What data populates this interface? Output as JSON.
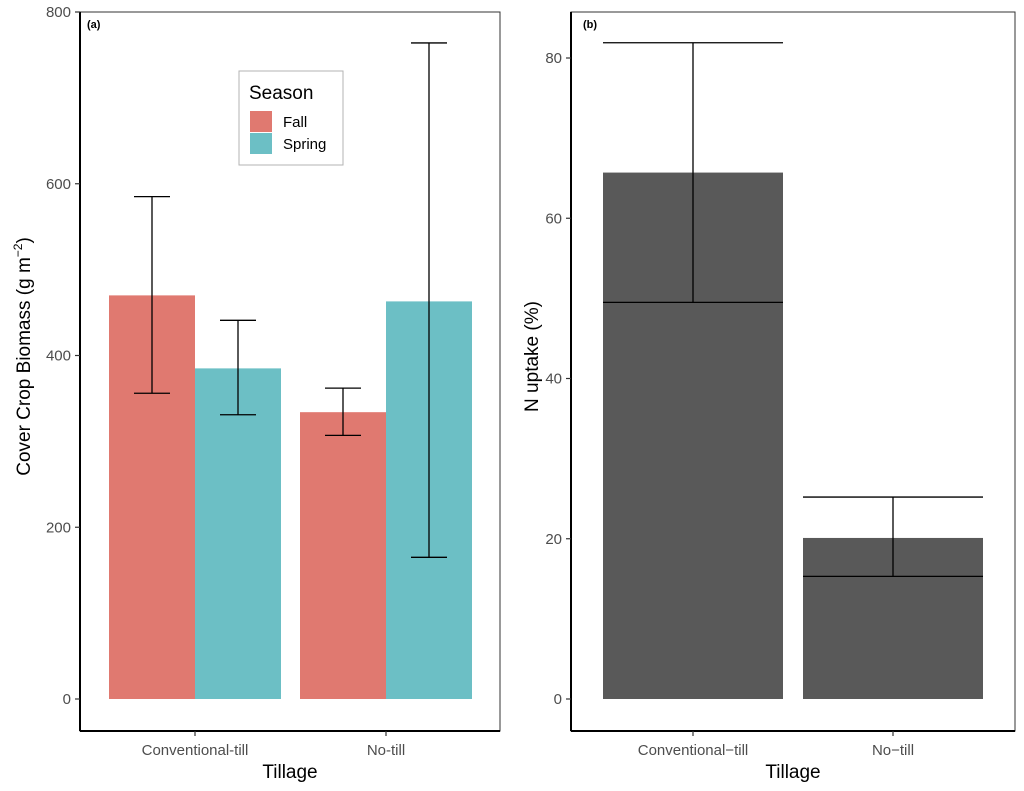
{
  "chart_data": [
    {
      "type": "bar",
      "panel_tag": "(a)",
      "title": "",
      "xlabel": "Tillage",
      "ylabel": "Cover Crop Biomass (g m",
      "ylabel_superscript": "−2",
      "ylabel_suffix": ")",
      "ylim": [
        -45,
        800
      ],
      "yticks": [
        0,
        200,
        400,
        600,
        800
      ],
      "ytick_labels": [
        "0",
        "200",
        "400",
        "600",
        "800"
      ],
      "categories": [
        "Conventional-till",
        "No-till"
      ],
      "grid": false,
      "legend": {
        "title": "Season",
        "placement": "top-center"
      },
      "series": [
        {
          "name": "Fall",
          "color": "#E07970",
          "values": [
            470,
            334
          ],
          "error_low": [
            356,
            307
          ],
          "error_high": [
            585,
            362
          ]
        },
        {
          "name": "Spring",
          "color": "#6CBFC5",
          "values": [
            385,
            463
          ],
          "error_low": [
            331,
            165
          ],
          "error_high": [
            441,
            764
          ]
        }
      ]
    },
    {
      "type": "bar",
      "panel_tag": "(b)",
      "title": "",
      "xlabel": "Tillage",
      "ylabel": "N uptake (%)",
      "ylim": [
        -4.5,
        87
      ],
      "yticks": [
        0,
        20,
        40,
        60,
        80
      ],
      "ytick_labels": [
        "0",
        "20",
        "40",
        "60",
        "80"
      ],
      "categories": [
        "Conventional−till",
        "No−till"
      ],
      "grid": false,
      "series": [
        {
          "name": "N uptake",
          "color": "#595959",
          "values": [
            65.7,
            20.1
          ],
          "error_low": [
            49.5,
            15.3
          ],
          "error_high": [
            81.9,
            25.2
          ]
        }
      ]
    }
  ]
}
